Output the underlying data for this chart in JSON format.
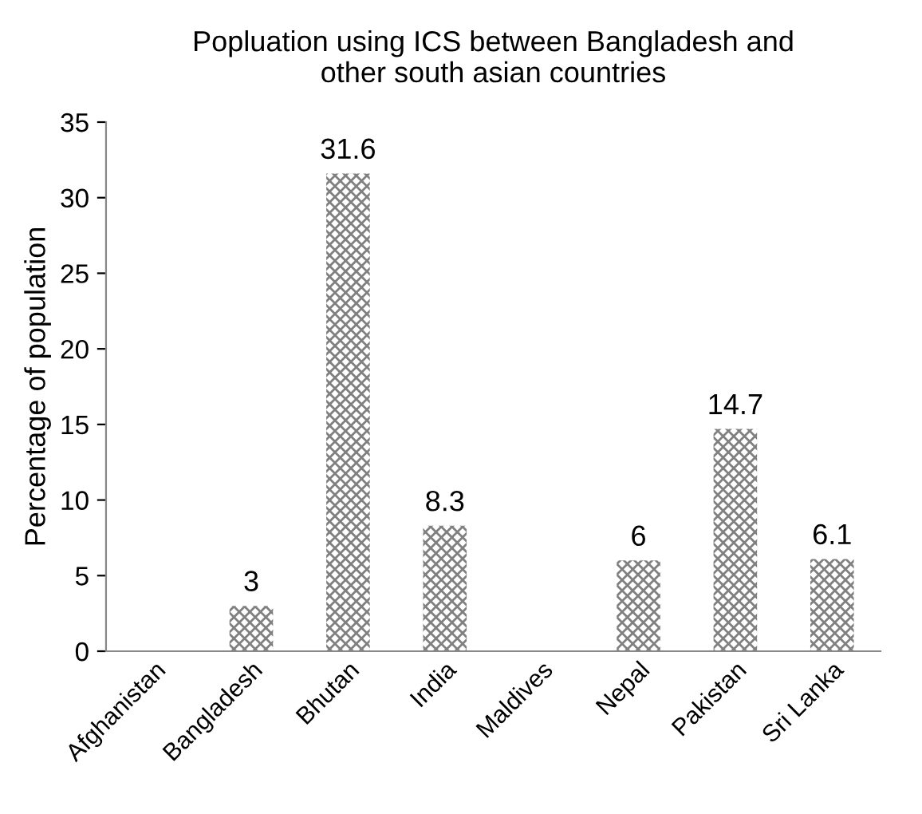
{
  "chart_data": {
    "type": "bar",
    "title": "Popluation using ICS between Bangladesh and\nother south asian countries",
    "ylabel": "Percentage of population",
    "categories": [
      "Afghanistan",
      "Bangladesh",
      "Bhutan",
      "India",
      "Maldives",
      "Nepal",
      "Pakistan",
      "Sri Lanka"
    ],
    "values": [
      null,
      3,
      31.6,
      8.3,
      null,
      6,
      14.7,
      6.1
    ],
    "color": "#808080",
    "ylim": [
      0,
      35
    ],
    "yticks": [
      0,
      5,
      10,
      15,
      20,
      25,
      30,
      35
    ],
    "data_labels": true,
    "grid": false,
    "legend": false
  }
}
